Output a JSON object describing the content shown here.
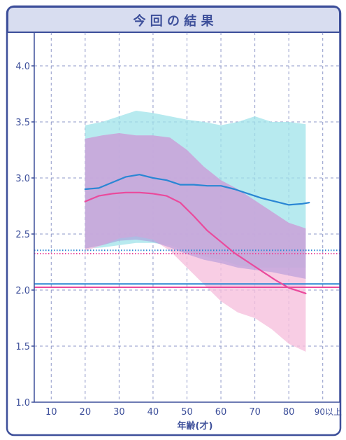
{
  "chart_data": {
    "type": "line",
    "title": "今 回 の 結 果",
    "xlabel": "年齢(才)",
    "ylabel": "",
    "xlim": [
      5,
      95
    ],
    "ylim": [
      1.0,
      4.3
    ],
    "x_ticks": [
      {
        "value": 10,
        "label": "10"
      },
      {
        "value": 20,
        "label": "20"
      },
      {
        "value": 30,
        "label": "30"
      },
      {
        "value": 40,
        "label": "40"
      },
      {
        "value": 50,
        "label": "50"
      },
      {
        "value": 60,
        "label": "60"
      },
      {
        "value": 70,
        "label": "70"
      },
      {
        "value": 80,
        "label": "80"
      },
      {
        "value": 90,
        "label": "90以上"
      }
    ],
    "y_ticks": [
      {
        "value": 1.0,
        "label": "1.0"
      },
      {
        "value": 1.5,
        "label": "1.5"
      },
      {
        "value": 2.0,
        "label": "2.0"
      },
      {
        "value": 2.5,
        "label": "2.5"
      },
      {
        "value": 3.0,
        "label": "3.0"
      },
      {
        "value": 3.5,
        "label": "3.5"
      },
      {
        "value": 4.0,
        "label": "4.0"
      }
    ],
    "grid": true,
    "bands": [
      {
        "color": "#9fe3ea",
        "opacity": 0.75,
        "x": [
          20,
          25,
          30,
          35,
          40,
          45,
          50,
          55,
          60,
          65,
          70,
          75,
          80,
          85
        ],
        "upper": [
          3.47,
          3.5,
          3.55,
          3.6,
          3.58,
          3.55,
          3.52,
          3.5,
          3.47,
          3.5,
          3.55,
          3.5,
          3.5,
          3.48
        ],
        "lower": [
          2.37,
          2.38,
          2.4,
          2.42,
          2.42,
          2.4,
          2.35,
          2.3,
          2.27,
          2.22,
          2.2,
          2.2,
          2.2,
          2.2
        ]
      },
      {
        "color": "#f6c0dd",
        "opacity": 0.8,
        "x": [
          20,
          25,
          30,
          35,
          40,
          45,
          50,
          55,
          60,
          65,
          70,
          75,
          80,
          85
        ],
        "upper": [
          3.35,
          3.38,
          3.4,
          3.38,
          3.38,
          3.36,
          3.25,
          3.1,
          2.98,
          2.9,
          2.8,
          2.7,
          2.6,
          2.55
        ],
        "lower": [
          2.35,
          2.4,
          2.46,
          2.48,
          2.45,
          2.35,
          2.2,
          2.05,
          1.9,
          1.8,
          1.75,
          1.65,
          1.52,
          1.45
        ]
      },
      {
        "color": "#a993d9",
        "opacity": 0.55,
        "x": [
          20,
          25,
          30,
          35,
          40,
          45,
          50,
          55,
          60,
          65,
          70,
          75,
          80,
          85
        ],
        "upper": [
          3.35,
          3.38,
          3.4,
          3.38,
          3.38,
          3.36,
          3.25,
          3.1,
          2.98,
          2.9,
          2.8,
          2.7,
          2.6,
          2.55
        ],
        "lower": [
          2.37,
          2.4,
          2.44,
          2.45,
          2.43,
          2.38,
          2.32,
          2.27,
          2.24,
          2.2,
          2.18,
          2.16,
          2.13,
          2.1
        ]
      }
    ],
    "series": [
      {
        "color": "#2a86d4",
        "x": [
          20,
          24,
          28,
          32,
          36,
          40,
          44,
          48,
          52,
          56,
          60,
          64,
          68,
          72,
          76,
          80,
          84,
          86
        ],
        "values": [
          2.9,
          2.91,
          2.96,
          3.01,
          3.03,
          3.0,
          2.98,
          2.94,
          2.94,
          2.93,
          2.93,
          2.9,
          2.86,
          2.82,
          2.79,
          2.76,
          2.77,
          2.78
        ]
      },
      {
        "color": "#ea4a9c",
        "x": [
          20,
          24,
          28,
          32,
          36,
          40,
          44,
          48,
          52,
          56,
          60,
          64,
          68,
          72,
          76,
          80,
          84,
          85
        ],
        "values": [
          2.79,
          2.84,
          2.86,
          2.87,
          2.87,
          2.86,
          2.84,
          2.78,
          2.66,
          2.53,
          2.43,
          2.33,
          2.25,
          2.17,
          2.09,
          2.02,
          1.98,
          1.97
        ]
      }
    ],
    "reference_lines": [
      {
        "value": 2.355,
        "color": "#2a86d4",
        "style": "dotted"
      },
      {
        "value": 2.325,
        "color": "#ea4a9c",
        "style": "dotted"
      },
      {
        "value": 2.055,
        "color": "#2a86d4",
        "style": "solid"
      },
      {
        "value": 2.025,
        "color": "#ea4a9c",
        "style": "solid"
      }
    ]
  },
  "colors": {
    "frame": "#3d4f9a",
    "title_bg": "#d8ddf0",
    "grid": "#8e97c8",
    "tick_text": "#3d4f9a"
  }
}
